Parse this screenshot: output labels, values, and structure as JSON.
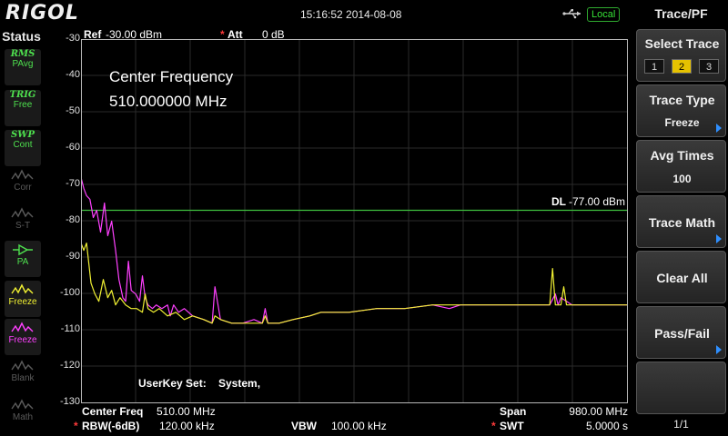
{
  "header": {
    "brand": "RIGOL",
    "datetime": "15:16:52 2014-08-08",
    "remote_status": "Local"
  },
  "status_panel": {
    "title": "Status",
    "items": [
      {
        "top": "RMS",
        "label": "PAvg",
        "icon": "pavg-icon",
        "color": "#4ee04e",
        "active": true
      },
      {
        "top": "TRIG",
        "label": "Free",
        "icon": "trig-icon",
        "color": "#4ee04e",
        "active": true
      },
      {
        "top": "SWP",
        "label": "Cont",
        "icon": "sweep-icon",
        "color": "#4ee04e",
        "active": true
      },
      {
        "top": "",
        "label": "Corr",
        "icon": "corr-icon",
        "color": "#5a5a5a",
        "active": false
      },
      {
        "top": "",
        "label": "S-T",
        "icon": "st-icon",
        "color": "#5a5a5a",
        "active": false
      },
      {
        "top": "",
        "label": "PA",
        "icon": "pa-icon",
        "color": "#4ee04e",
        "active": true
      },
      {
        "top": "",
        "label": "Freeze",
        "icon": "freeze-yellow-icon",
        "color": "#f0f032",
        "active": true
      },
      {
        "top": "",
        "label": "Freeze",
        "icon": "freeze-magenta-icon",
        "color": "#ff40ff",
        "active": true
      },
      {
        "top": "",
        "label": "Blank",
        "icon": "blank-icon",
        "color": "#5a5a5a",
        "active": false
      },
      {
        "top": "",
        "label": "Math",
        "icon": "math-icon",
        "color": "#5a5a5a",
        "active": false
      }
    ]
  },
  "plot": {
    "ref_label": "Ref",
    "ref_value": "-30.00 dBm",
    "att_label": "Att",
    "att_value": "0 dB",
    "center_title": "Center Frequency",
    "center_value": "510.000000 MHz",
    "dl_label": "DL",
    "dl_value": "-77.00 dBm",
    "userkey_label": "UserKey Set:",
    "userkey_value": "System,"
  },
  "chart_data": {
    "type": "line",
    "ylabel": "",
    "xlabel": "",
    "ylim": [
      -130,
      -30
    ],
    "yticks": [
      "-30",
      "-40",
      "-50",
      "-60",
      "-70",
      "-80",
      "-90",
      "-100",
      "-110",
      "-120",
      "-130"
    ],
    "xlim": [
      20,
      1000
    ],
    "x_unit": "MHz",
    "display_line": -77,
    "grid": true,
    "series": [
      {
        "color": "#ff40ff",
        "x": [
          20,
          25,
          30,
          36,
          42,
          48,
          55,
          62,
          68,
          75,
          82,
          88,
          95,
          100,
          105,
          110,
          118,
          125,
          130,
          135,
          140,
          148,
          155,
          165,
          175,
          180,
          186,
          195,
          205,
          220,
          240,
          255,
          260,
          270,
          290,
          310,
          330,
          345,
          350,
          355,
          375,
          400,
          430,
          450,
          500,
          550,
          600,
          650,
          680,
          700,
          800,
          860,
          870,
          875,
          880,
          900,
          950,
          1000
        ],
        "y": [
          -68,
          -71,
          -73,
          -74,
          -79,
          -77,
          -83,
          -75,
          -84,
          -80,
          -88,
          -96,
          -101,
          -102,
          -91,
          -99,
          -100,
          -102,
          -95,
          -101,
          -103,
          -104,
          -103,
          -104,
          -103,
          -106,
          -103,
          -105,
          -104,
          -106,
          -107,
          -108,
          -98,
          -107,
          -108,
          -108,
          -107,
          -108,
          -104,
          -108,
          -108,
          -107,
          -106,
          -105,
          -105,
          -104,
          -104,
          -103,
          -104,
          -103,
          -103,
          -103,
          -100,
          -103,
          -101,
          -103,
          -103,
          -103
        ]
      },
      {
        "color": "#f0f032",
        "x": [
          20,
          25,
          30,
          38,
          45,
          52,
          60,
          68,
          75,
          82,
          90,
          100,
          110,
          120,
          130,
          135,
          140,
          150,
          160,
          175,
          190,
          205,
          220,
          240,
          255,
          260,
          270,
          290,
          310,
          345,
          350,
          355,
          375,
          400,
          430,
          450,
          500,
          550,
          600,
          650,
          680,
          700,
          800,
          860,
          865,
          870,
          880,
          885,
          890,
          900,
          950,
          1000
        ],
        "y": [
          -86,
          -88,
          -86,
          -97,
          -100,
          -102,
          -96,
          -101,
          -99,
          -103,
          -101,
          -103,
          -104,
          -104,
          -105,
          -100,
          -104,
          -105,
          -104,
          -106,
          -105,
          -107,
          -106,
          -107,
          -108,
          -106,
          -107,
          -108,
          -108,
          -108,
          -106,
          -108,
          -108,
          -107,
          -106,
          -105,
          -105,
          -104,
          -104,
          -103,
          -103,
          -103,
          -103,
          -103,
          -93,
          -103,
          -103,
          -98,
          -103,
          -103,
          -103,
          -103
        ]
      }
    ]
  },
  "readout": {
    "center_label": "Center Freq",
    "center_value": "510.00 MHz",
    "span_label": "Span",
    "span_value": "980.00 MHz",
    "rbw_label": "RBW(-6dB)",
    "rbw_value": "120.00 kHz",
    "vbw_label": "VBW",
    "vbw_value": "100.00 kHz",
    "swt_label": "SWT",
    "swt_value": "5.0000 s"
  },
  "menu": {
    "title": "Trace/PF",
    "select_trace_label": "Select Trace",
    "trace_buttons": [
      "1",
      "2",
      "3"
    ],
    "selected_trace": "2",
    "trace_type_label": "Trace Type",
    "trace_type_value": "Freeze",
    "avg_times_label": "Avg Times",
    "avg_times_value": "100",
    "trace_math_label": "Trace Math",
    "clear_all_label": "Clear All",
    "pass_fail_label": "Pass/Fail",
    "page_indicator": "1/1",
    "colors": {
      "accent": "#2f8fff",
      "selected_trace": "#e6c200"
    }
  }
}
